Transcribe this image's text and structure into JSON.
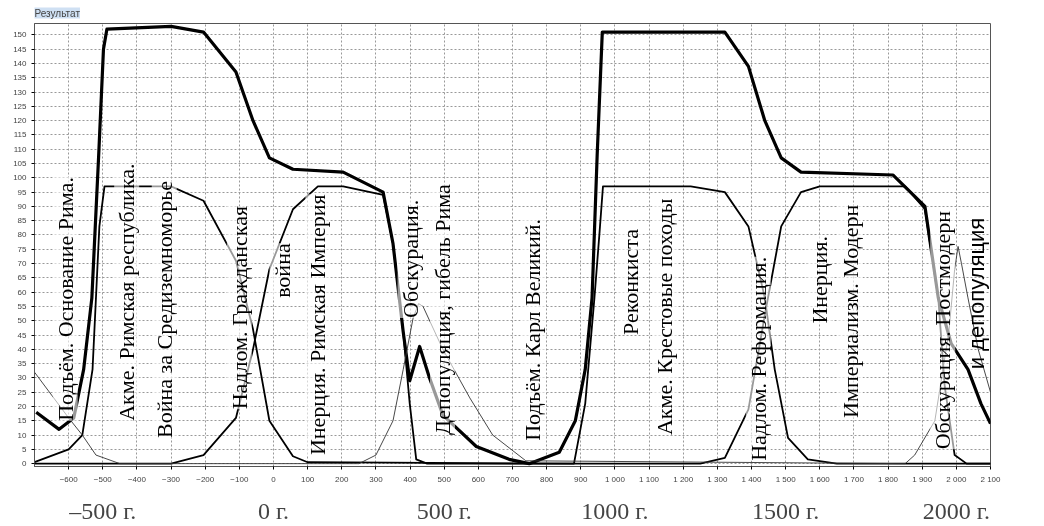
{
  "chart_data": {
    "type": "line",
    "title": "Результат",
    "xlim": [
      -700,
      2100
    ],
    "ylim": [
      -1,
      154
    ],
    "xticks": [
      -600,
      -500,
      -400,
      -300,
      -200,
      -100,
      0,
      100,
      200,
      300,
      400,
      500,
      600,
      700,
      800,
      900,
      {
        "value": 1000,
        "label": "1 000"
      },
      {
        "value": 1100,
        "label": "1 100"
      },
      {
        "value": 1200,
        "label": "1 200"
      },
      {
        "value": 1300,
        "label": "1 300"
      },
      {
        "value": 1400,
        "label": "1 400"
      },
      {
        "value": 1500,
        "label": "1 500"
      },
      {
        "value": 1600,
        "label": "1 600"
      },
      {
        "value": 1700,
        "label": "1 700"
      },
      {
        "value": 1800,
        "label": "1 800"
      },
      {
        "value": 1900,
        "label": "1 900"
      },
      {
        "value": 2000,
        "label": "2 000"
      },
      {
        "value": 2100,
        "label": "2 100"
      }
    ],
    "yticks": [
      0,
      5,
      10,
      15,
      20,
      25,
      30,
      35,
      40,
      45,
      50,
      55,
      60,
      65,
      70,
      75,
      80,
      85,
      90,
      95,
      100,
      105,
      110,
      115,
      120,
      125,
      130,
      135,
      140,
      145,
      150
    ],
    "x2lim": [
      -700,
      2100
    ],
    "x2ticks": [
      {
        "value": -500,
        "label": "–500 г."
      },
      {
        "value": 0,
        "label": "0 г."
      },
      {
        "value": 500,
        "label": "500 г."
      },
      {
        "value": 1000,
        "label": "1000 г."
      },
      {
        "value": 1500,
        "label": "1500 г."
      },
      {
        "value": 2000,
        "label": "2000 г."
      }
    ],
    "grid": true,
    "marker": "none",
    "series": [
      {
        "color": "#000000",
        "x": [
          -695,
          -628,
          -585,
          -556,
          -532,
          -512,
          -498,
          -488,
          -300,
          -205,
          -110,
          -60,
          -12,
          57,
          204,
          321,
          350,
          380,
          399,
          428,
          457,
          496,
          594,
          690,
          749,
          837,
          884,
          913,
          933,
          948,
          963,
          1322,
          1391,
          1439,
          1487,
          1545,
          1814,
          1908,
          1947,
          1985,
          2034,
          2072,
          2100
        ],
        "values": [
          18,
          12,
          16,
          33,
          58,
          108,
          145,
          152,
          153,
          151,
          137,
          120,
          107,
          103,
          102,
          95,
          77,
          46,
          29,
          41,
          30,
          17,
          6,
          1.5,
          0,
          4,
          15,
          33,
          58,
          108,
          151,
          151,
          139,
          120,
          107,
          102,
          101,
          90,
          58,
          42,
          33,
          21,
          14
        ]
      },
      {
        "color": "#000000",
        "x": [
          -700,
          -600,
          -560,
          -530,
          -510,
          -495,
          -300,
          -205,
          -110,
          -60,
          -12,
          57,
          100,
          880,
          913,
          940,
          955,
          965,
          1222,
          1322,
          1391,
          1439,
          1468,
          1507,
          1565,
          1650,
          2100
        ],
        "values": [
          0.5,
          5,
          10,
          33,
          83,
          97,
          97,
          92,
          71,
          47,
          15,
          2.6,
          0.5,
          0,
          21,
          58,
          81,
          97,
          97,
          95,
          83,
          58,
          33,
          9,
          1.5,
          0,
          0
        ]
      },
      {
        "color": "#000000",
        "x": [
          -700,
          -300,
          -205,
          -110,
          -60,
          -12,
          57,
          130,
          204,
          321,
          350,
          380,
          399,
          418,
          450,
          1250,
          1322,
          1391,
          1439,
          1487,
          1545,
          1600,
          1850,
          1908,
          1947,
          1966,
          1995,
          2030,
          2100
        ],
        "values": [
          0,
          0,
          3,
          16,
          40,
          68,
          89,
          97,
          97,
          94,
          77,
          46,
          21,
          1.5,
          0,
          0,
          2,
          19,
          52,
          83,
          95,
          97,
          97,
          89,
          58,
          27,
          3,
          0,
          0
        ]
      },
      {
        "color": "#333333",
        "x": [
          -700,
          -650,
          -600,
          -560,
          -520,
          -450,
          250,
          300,
          350,
          380,
          409,
          425,
          438,
          496,
          575,
          642,
          739,
          1850,
          1878,
          1937,
          1978,
          1995,
          2005,
          2015,
          2034,
          2064,
          2100
        ],
        "values": [
          32,
          24,
          16,
          10,
          3,
          0,
          0,
          3,
          15,
          33,
          51,
          56,
          55,
          40,
          23,
          10,
          1,
          0,
          3,
          15,
          46,
          68,
          76,
          70,
          58,
          40,
          25
        ]
      }
    ],
    "annotations": [
      "Подъём. Основание Рима.",
      "Акме. Римская республика.",
      "Война за Средиземноморье",
      "Надлом. Гражданская\nвойна",
      "Инерция. Римская Империя",
      "Обскурация.",
      "Депопуляция, гибель Рима",
      "Подъём. Карл Великий.",
      "Реконкиста",
      "Акме. Крестовые походы",
      "Надлом. Реформация.",
      "Инерция.",
      "Империализм. Модерн",
      "Обскурация. Постмодерн\nи депопуляция"
    ]
  }
}
